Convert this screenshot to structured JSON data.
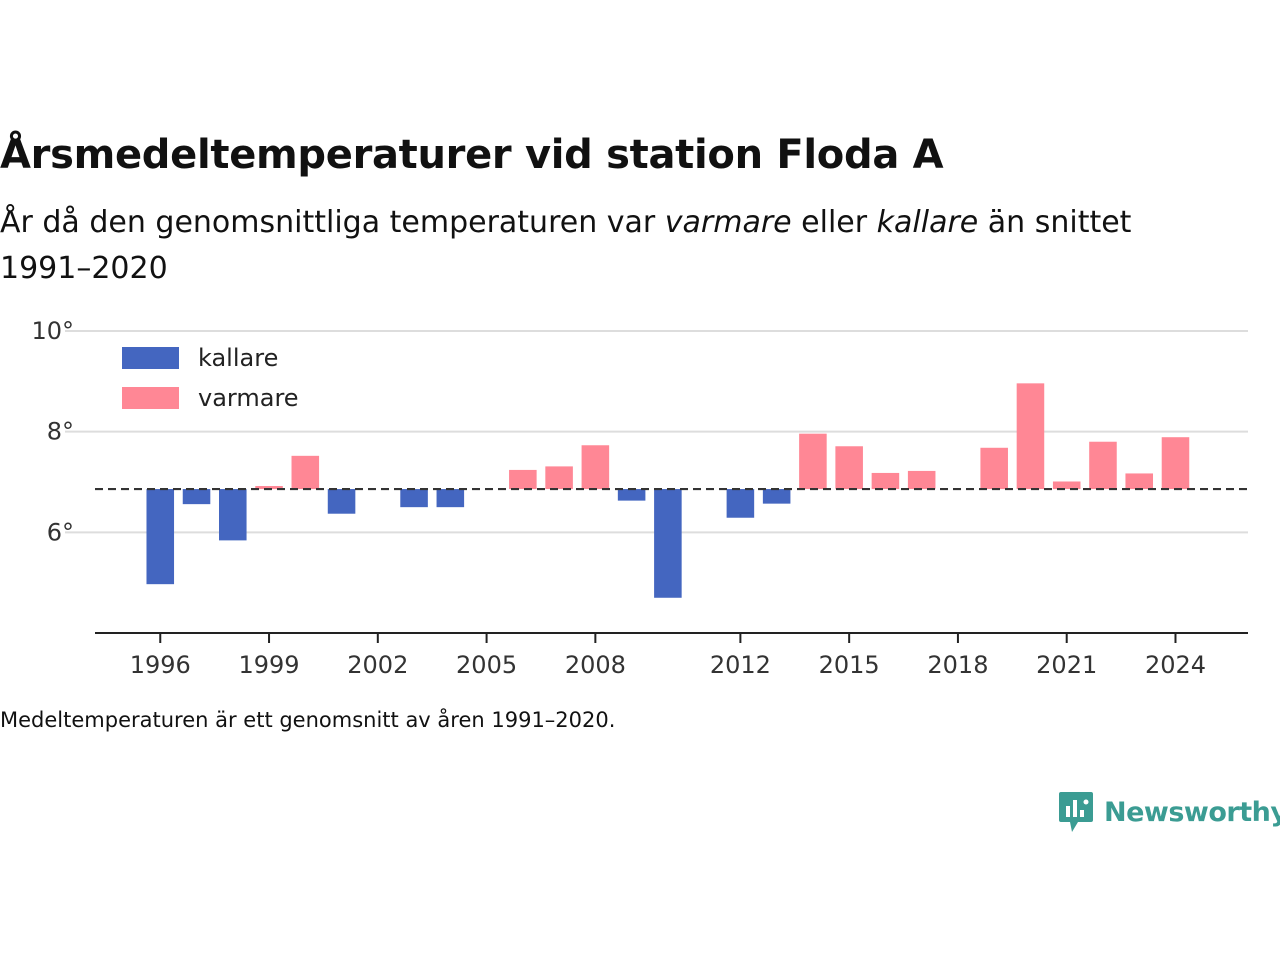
{
  "title": "Årsmedeltemperaturer vid station Floda A",
  "subtitle": {
    "part1": "År då den genomsnittliga temperaturen var ",
    "warm_word": "varmare",
    "part2": " eller ",
    "cold_word": "kallare",
    "part3": " än snittet 1991–2020"
  },
  "note": "Medeltemperaturen är ett genomsnitt av åren 1991–2020.",
  "brand": "Newsworthy",
  "colors": {
    "kallare": "#4466c0",
    "varmare": "#ff8795",
    "baseline": "#333333",
    "grid": "#dddddd",
    "brand": "#3b9c93"
  },
  "chart_data": {
    "type": "bar",
    "baseline": 6.86,
    "ylim": [
      4,
      10
    ],
    "yticks": [
      6,
      8,
      10
    ],
    "ytick_labels": [
      "6°",
      "8°",
      "10°"
    ],
    "xticks": [
      1996,
      1999,
      2002,
      2005,
      2008,
      2012,
      2015,
      2018,
      2021,
      2024
    ],
    "xlim": [
      1994.2,
      2026
    ],
    "legend": [
      {
        "key": "kallare",
        "label": "kallare"
      },
      {
        "key": "varmare",
        "label": "varmare"
      }
    ],
    "legend_position": "top-left",
    "grid": true,
    "years": [
      1996,
      1997,
      1998,
      1999,
      2000,
      2001,
      2003,
      2004,
      2006,
      2007,
      2008,
      2009,
      2010,
      2012,
      2013,
      2014,
      2015,
      2016,
      2017,
      2019,
      2020,
      2021,
      2022,
      2023,
      2024
    ],
    "values": [
      4.97,
      6.56,
      5.84,
      6.92,
      7.52,
      6.37,
      6.5,
      6.5,
      7.24,
      7.31,
      7.73,
      6.63,
      4.7,
      6.29,
      6.57,
      7.96,
      7.71,
      7.18,
      7.22,
      7.68,
      8.96,
      7.01,
      7.8,
      7.17,
      7.89
    ]
  }
}
